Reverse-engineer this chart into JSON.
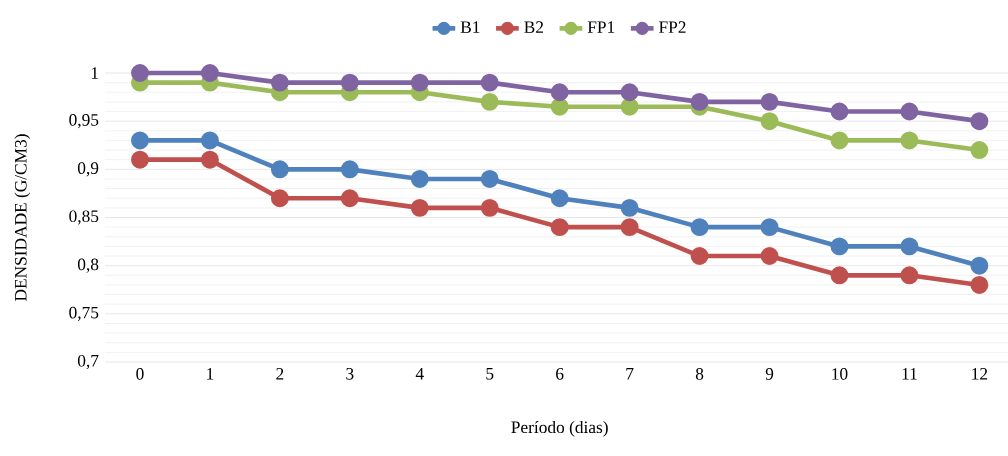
{
  "chart_data": {
    "type": "line",
    "xlabel": "Período (dias)",
    "ylabel": "DENSIDADE (G/CM3)",
    "categories": [
      "0",
      "1",
      "2",
      "3",
      "4",
      "5",
      "6",
      "7",
      "8",
      "9",
      "10",
      "11",
      "12"
    ],
    "series": [
      {
        "name": "B1",
        "color": "#4f81bd",
        "values": [
          0.93,
          0.93,
          0.9,
          0.9,
          0.89,
          0.89,
          0.87,
          0.86,
          0.84,
          0.84,
          0.82,
          0.82,
          0.8
        ]
      },
      {
        "name": "B2",
        "color": "#c0504d",
        "values": [
          0.91,
          0.91,
          0.87,
          0.87,
          0.86,
          0.86,
          0.84,
          0.84,
          0.81,
          0.81,
          0.79,
          0.79,
          0.78
        ]
      },
      {
        "name": "FP1",
        "color": "#9bbb59",
        "values": [
          0.99,
          0.99,
          0.98,
          0.98,
          0.98,
          0.97,
          0.965,
          0.965,
          0.965,
          0.95,
          0.93,
          0.93,
          0.92
        ]
      },
      {
        "name": "FP2",
        "color": "#8064a2",
        "values": [
          1.0,
          1.0,
          0.99,
          0.99,
          0.99,
          0.99,
          0.98,
          0.98,
          0.97,
          0.97,
          0.96,
          0.96,
          0.95
        ]
      }
    ],
    "ylim": [
      0.7,
      1.0
    ],
    "yticks": [
      {
        "value": 0.7,
        "label": "0,7"
      },
      {
        "value": 0.75,
        "label": "0,75"
      },
      {
        "value": 0.8,
        "label": "0,8"
      },
      {
        "value": 0.85,
        "label": "0,85"
      },
      {
        "value": 0.9,
        "label": "0,9"
      },
      {
        "value": 0.95,
        "label": "0,95"
      },
      {
        "value": 1.0,
        "label": "1"
      }
    ],
    "grid": "y",
    "legend": "top",
    "marker": "circle",
    "line_style": "solid"
  }
}
